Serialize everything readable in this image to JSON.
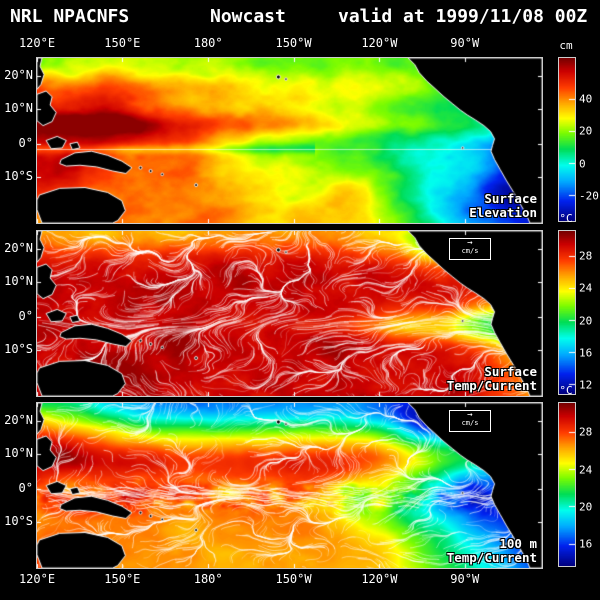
{
  "header": {
    "product": "NRL NPACNFS",
    "mode": "Nowcast",
    "valid": "valid at 1999/11/08 00Z"
  },
  "axes": {
    "lon_labels": [
      "120°E",
      "150°E",
      "180°",
      "150°W",
      "120°W",
      "90°W"
    ],
    "lon_fracs": [
      0.0,
      0.169,
      0.339,
      0.508,
      0.678,
      0.847
    ],
    "lat_labels": [
      "20°N",
      "10°N",
      "0°",
      "10°S"
    ],
    "lat_fracs": [
      0.11,
      0.31,
      0.52,
      0.72
    ]
  },
  "panels": [
    {
      "name": "Surface Elevation",
      "label_lines": [
        "Surface",
        "Elevation"
      ],
      "colorbar": {
        "unit": "cm",
        "min": -35,
        "max": 65,
        "ticks": [
          40,
          20,
          0,
          -20
        ]
      },
      "currents": false
    },
    {
      "name": "Surface Temp/Current",
      "label_lines": [
        "Surface",
        "Temp/Current"
      ],
      "colorbar": {
        "unit": "°C",
        "min": 11,
        "max": 31,
        "ticks": [
          28,
          24,
          20,
          16,
          12
        ]
      },
      "currents": true,
      "vector_scale_label": "cm/s"
    },
    {
      "name": "100 m Temp/Current",
      "label_lines": [
        "100 m",
        "Temp/Current"
      ],
      "colorbar": {
        "unit": "°C",
        "min": 13.8,
        "max": 31,
        "ticks": [
          28,
          24,
          20,
          16
        ]
      },
      "currents": true,
      "vector_scale_label": "cm/s"
    }
  ],
  "palette": [
    [
      0,
      "#000080"
    ],
    [
      0.12,
      "#0022ee"
    ],
    [
      0.24,
      "#00aaff"
    ],
    [
      0.34,
      "#00ffee"
    ],
    [
      0.44,
      "#00dd55"
    ],
    [
      0.54,
      "#7cfc00"
    ],
    [
      0.63,
      "#ffff00"
    ],
    [
      0.72,
      "#ffaa00"
    ],
    [
      0.82,
      "#ff3c00"
    ],
    [
      0.92,
      "#cc0000"
    ],
    [
      1,
      "#770000"
    ]
  ]
}
